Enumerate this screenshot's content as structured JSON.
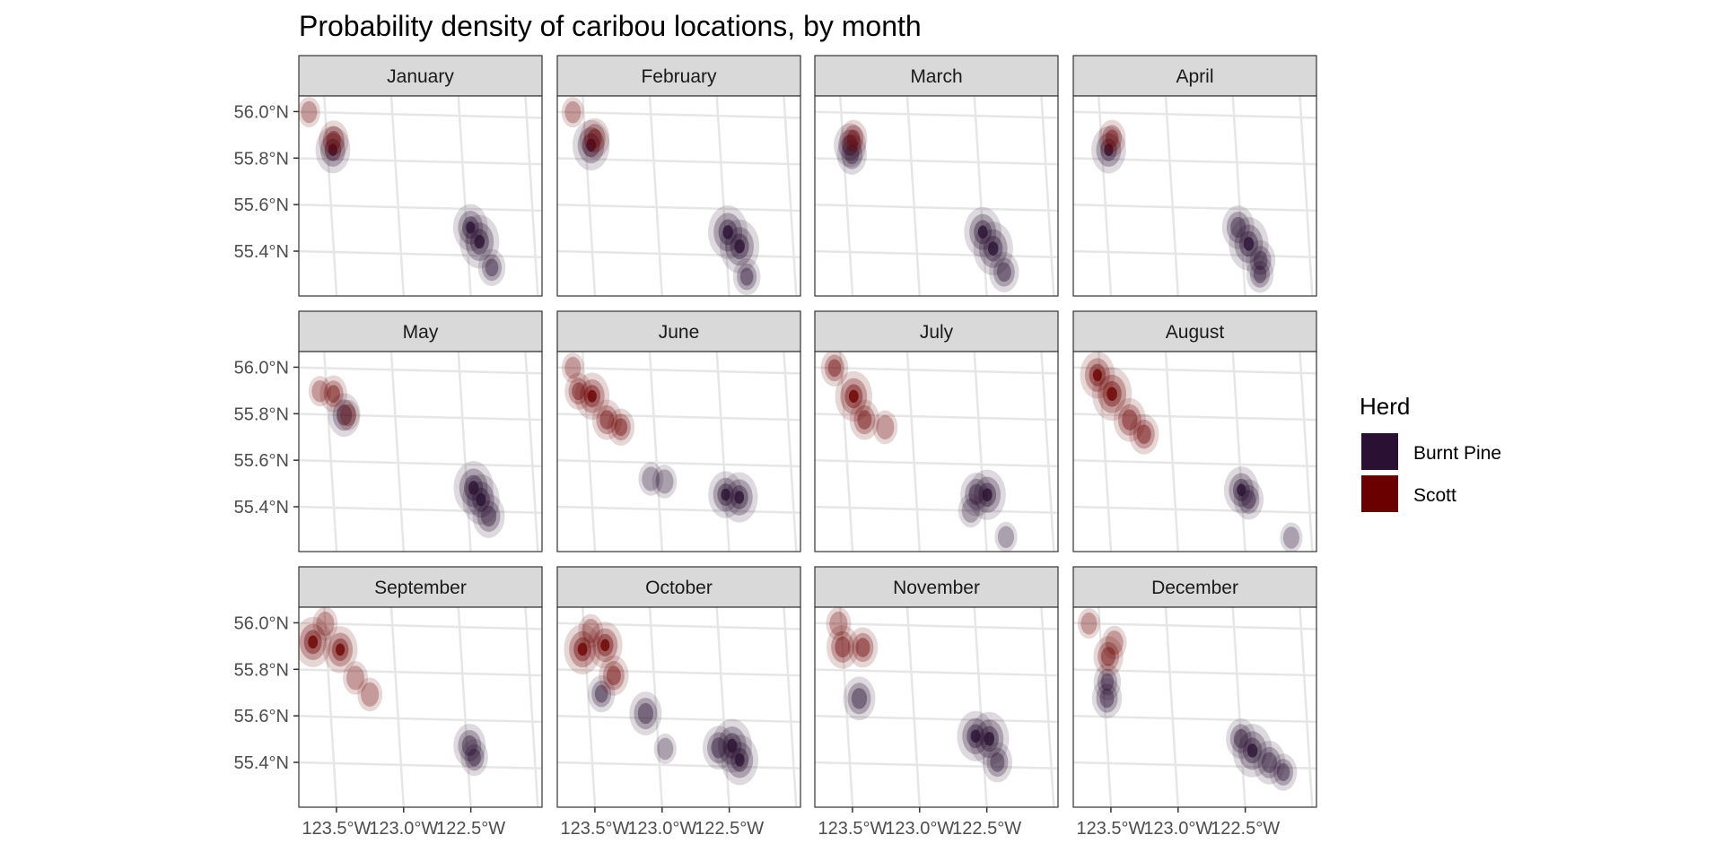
{
  "chart_data": {
    "type": "heatmap",
    "title": "Probability density of caribou locations, by month",
    "xlabel": "",
    "ylabel": "",
    "facets": [
      "January",
      "February",
      "March",
      "April",
      "May",
      "June",
      "July",
      "August",
      "September",
      "October",
      "November",
      "December"
    ],
    "x_ticks": [
      "123.5°W",
      "123.0°W",
      "122.5°W"
    ],
    "x_tick_values": [
      -123.5,
      -123.0,
      -122.5
    ],
    "y_ticks": [
      "56.0°N",
      "55.8°N",
      "55.6°N",
      "55.4°N"
    ],
    "y_tick_values": [
      56.0,
      55.8,
      55.6,
      55.4
    ],
    "xlim": [
      -123.78,
      -121.97
    ],
    "ylim": [
      55.22,
      56.08
    ],
    "grid": true,
    "legend": {
      "title": "Herd",
      "placement": "right",
      "entries": [
        {
          "name": "Burnt Pine",
          "color": "#2a1133"
        },
        {
          "name": "Scott",
          "color": "#6b0000"
        }
      ]
    },
    "series": [
      {
        "name": "Burnt Pine",
        "color": "#2a1133",
        "hotspots": [
          [
            [
              -123.46,
              55.84,
              0.8
            ],
            [
              -122.47,
              55.52,
              0.8
            ],
            [
              -122.41,
              55.46,
              1
            ],
            [
              -122.33,
              55.35,
              0.5
            ]
          ],
          [
            [
              -123.46,
              55.86,
              0.9
            ],
            [
              -122.48,
              55.5,
              1
            ],
            [
              -122.4,
              55.44,
              1
            ],
            [
              -122.36,
              55.31,
              0.5
            ]
          ],
          [
            [
              -123.45,
              55.86,
              0.7
            ],
            [
              -123.44,
              55.82,
              0.6
            ],
            [
              -122.5,
              55.5,
              0.9
            ],
            [
              -122.43,
              55.43,
              1
            ],
            [
              -122.36,
              55.33,
              0.6
            ]
          ],
          [
            [
              -123.45,
              55.84,
              0.8
            ],
            [
              -122.52,
              55.52,
              0.7
            ],
            [
              -122.45,
              55.45,
              1
            ],
            [
              -122.37,
              55.38,
              0.6
            ],
            [
              -122.38,
              55.32,
              0.5
            ]
          ],
          [
            [
              -123.38,
              55.8,
              0.7
            ],
            [
              -122.45,
              55.5,
              1
            ],
            [
              -122.4,
              55.45,
              0.9
            ],
            [
              -122.35,
              55.38,
              0.7
            ]
          ],
          [
            [
              -123.05,
              55.53,
              0.4
            ],
            [
              -122.95,
              55.52,
              0.4
            ],
            [
              -122.5,
              55.47,
              0.8
            ],
            [
              -122.4,
              55.46,
              0.9
            ]
          ],
          [
            [
              -122.55,
              55.47,
              0.7
            ],
            [
              -122.47,
              55.47,
              0.9
            ],
            [
              -122.6,
              55.4,
              0.4
            ],
            [
              -122.35,
              55.29,
              0.3
            ]
          ],
          [
            [
              -122.5,
              55.49,
              0.8
            ],
            [
              -122.45,
              55.45,
              0.6
            ],
            [
              -122.15,
              55.29,
              0.3
            ]
          ],
          [
            [
              -122.48,
              55.49,
              0.7
            ],
            [
              -122.45,
              55.44,
              0.5
            ]
          ],
          [
            [
              -123.4,
              55.7,
              0.5
            ],
            [
              -123.08,
              55.62,
              0.7
            ],
            [
              -122.95,
              55.47,
              0.3
            ],
            [
              -122.55,
              55.48,
              0.7
            ],
            [
              -122.45,
              55.49,
              1
            ],
            [
              -122.4,
              55.43,
              0.9
            ]
          ],
          [
            [
              -123.4,
              55.68,
              0.7
            ],
            [
              -122.55,
              55.53,
              0.9
            ],
            [
              -122.45,
              55.52,
              1
            ],
            [
              -122.4,
              55.42,
              0.6
            ]
          ],
          [
            [
              -123.48,
              55.68,
              0.6
            ],
            [
              -123.47,
              55.75,
              0.5
            ],
            [
              -122.5,
              55.52,
              0.6
            ],
            [
              -122.42,
              55.47,
              1
            ],
            [
              -122.3,
              55.42,
              0.7
            ],
            [
              -122.2,
              55.38,
              0.5
            ]
          ]
        ]
      },
      {
        "name": "Scott",
        "color": "#6b0000",
        "hotspots": [
          [
            [
              -123.45,
              55.88,
              0.6
            ],
            [
              -123.62,
              56.0,
              0.3
            ]
          ],
          [
            [
              -123.43,
              55.89,
              0.6
            ],
            [
              -123.58,
              56.0,
              0.3
            ]
          ],
          [
            [
              -123.42,
              55.89,
              0.5
            ]
          ],
          [
            [
              -123.42,
              55.89,
              0.5
            ]
          ],
          [
            [
              -123.45,
              55.89,
              0.5
            ],
            [
              -123.55,
              55.9,
              0.3
            ],
            [
              -123.35,
              55.8,
              0.3
            ]
          ],
          [
            [
              -123.45,
              55.88,
              0.8
            ],
            [
              -123.55,
              55.9,
              0.5
            ],
            [
              -123.58,
              56.0,
              0.3
            ],
            [
              -123.35,
              55.78,
              0.6
            ],
            [
              -123.25,
              55.75,
              0.5
            ]
          ],
          [
            [
              -123.42,
              55.88,
              0.9
            ],
            [
              -123.55,
              56.0,
              0.5
            ],
            [
              -123.35,
              55.78,
              0.6
            ],
            [
              -123.2,
              55.75,
              0.4
            ]
          ],
          [
            [
              -123.52,
              55.97,
              0.8
            ],
            [
              -123.42,
              55.89,
              1
            ],
            [
              -123.3,
              55.78,
              0.7
            ],
            [
              -123.2,
              55.72,
              0.6
            ]
          ],
          [
            [
              -123.6,
              55.92,
              0.9
            ],
            [
              -123.4,
              55.89,
              0.8
            ],
            [
              -123.5,
              56.0,
              0.4
            ],
            [
              -123.3,
              55.77,
              0.4
            ],
            [
              -123.2,
              55.7,
              0.4
            ]
          ],
          [
            [
              -123.52,
              55.89,
              0.9
            ],
            [
              -123.35,
              55.91,
              0.8
            ],
            [
              -123.45,
              55.97,
              0.4
            ],
            [
              -123.3,
              55.78,
              0.6
            ]
          ],
          [
            [
              -123.5,
              55.9,
              0.7
            ],
            [
              -123.35,
              55.9,
              0.6
            ],
            [
              -123.52,
              56.0,
              0.4
            ]
          ],
          [
            [
              -123.45,
              55.86,
              0.6
            ],
            [
              -123.4,
              55.92,
              0.4
            ],
            [
              -123.58,
              56.0,
              0.3
            ]
          ]
        ]
      }
    ]
  }
}
